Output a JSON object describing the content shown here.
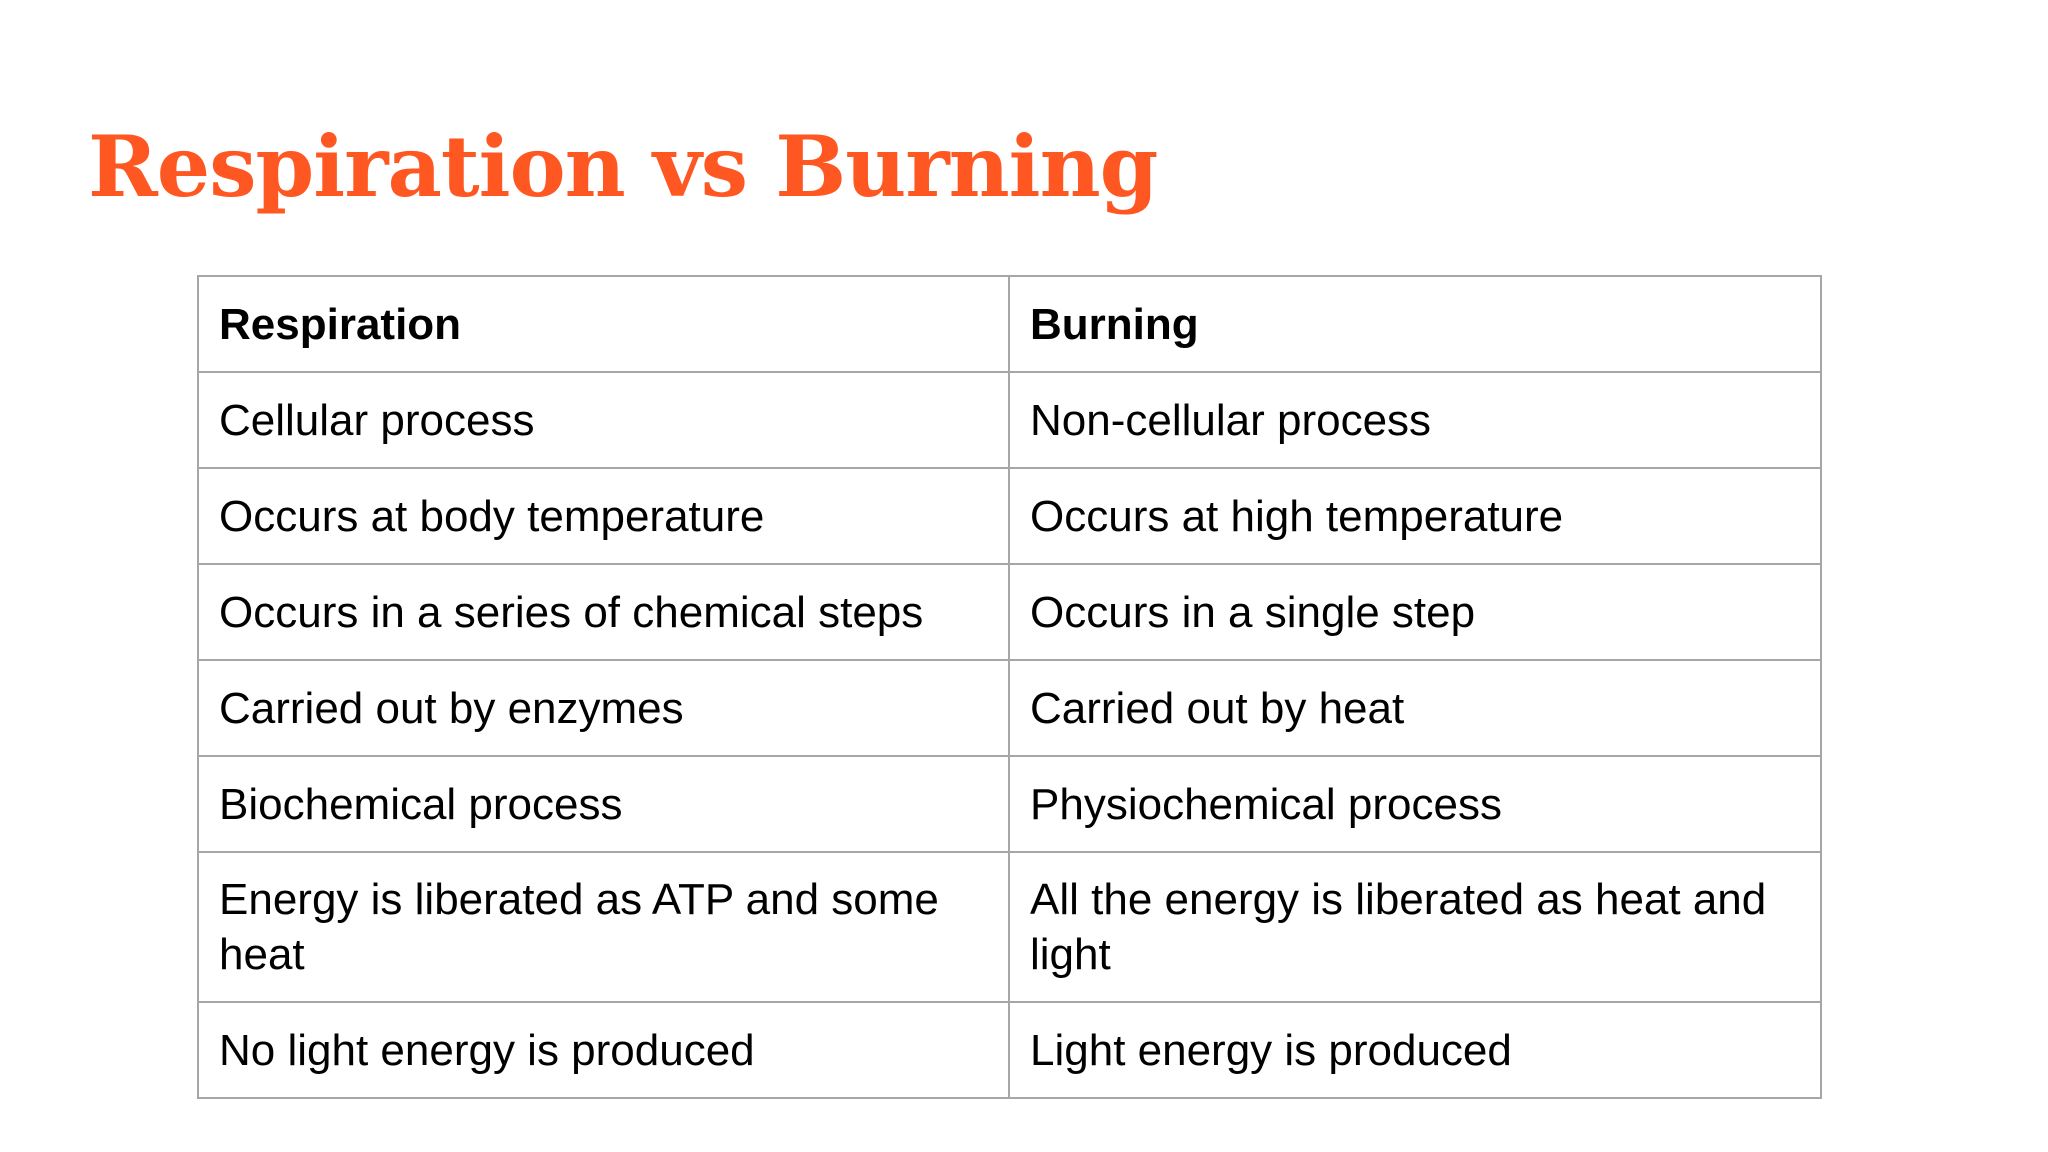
{
  "slide": {
    "title": "Respiration vs Burning",
    "title_color": "#ff5722"
  },
  "table": {
    "headers": [
      "Respiration",
      "Burning"
    ],
    "rows": [
      [
        "Cellular process",
        "Non-cellular process"
      ],
      [
        "Occurs at body temperature",
        "Occurs at high temperature"
      ],
      [
        "Occurs in a series of chemical steps",
        "Occurs in a single step"
      ],
      [
        "Carried out by enzymes",
        "Carried out by heat"
      ],
      [
        "Biochemical process",
        "Physiochemical process"
      ],
      [
        "Energy is liberated as ATP and some heat",
        "All the energy is liberated as heat and light"
      ],
      [
        "No light energy is produced",
        "Light energy is produced"
      ]
    ],
    "border_color": "#a6a6a6"
  }
}
